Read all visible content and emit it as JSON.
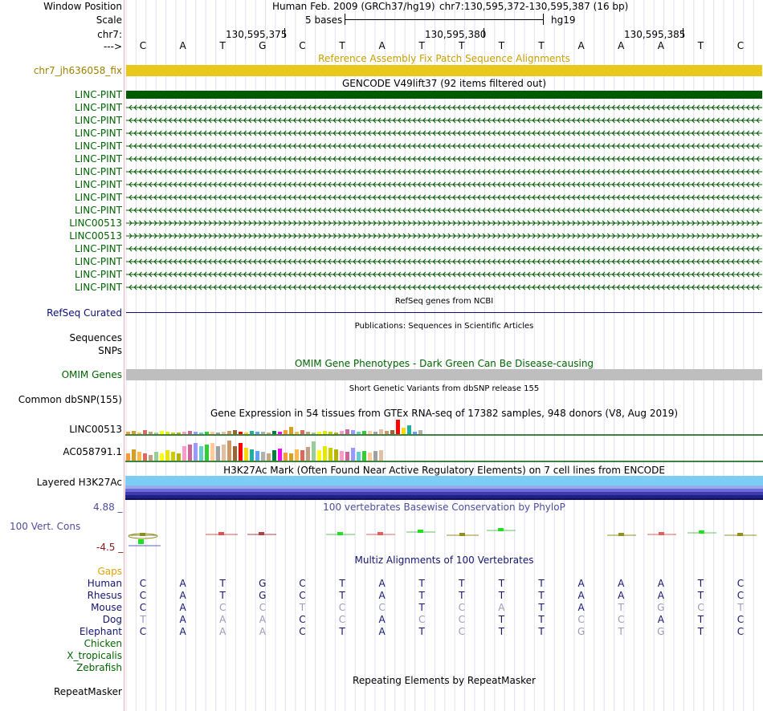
{
  "header": {
    "window_position_label": "Window Position",
    "scale_label": "Scale",
    "chrom_label": "chr7:",
    "strand_label": "--->",
    "assembly_text": "Human Feb. 2009 (GRCh37/hg19)",
    "position_text": "chr7:130,595,372-130,595,387 (16 bp)",
    "scale_text": "5 bases",
    "db_text": "hg19",
    "ticks": [
      "130,595,375",
      "130,595,380",
      "130,595,385"
    ]
  },
  "sequence": [
    "C",
    "A",
    "T",
    "G",
    "C",
    "T",
    "A",
    "T",
    "T",
    "T",
    "T",
    "A",
    "A",
    "A",
    "T",
    "C"
  ],
  "tracks": {
    "fix_patch": {
      "title": "Reference Assembly Fix Patch Sequence Alignments",
      "label": "chr7_jh636058_fix",
      "color": "#e8c81a"
    },
    "gencode": {
      "title": "GENCODE V49lift37 (92 items filtered out)",
      "genes": [
        {
          "name": "LINC-PINT",
          "dir": "<"
        },
        {
          "name": "LINC-PINT",
          "dir": "<"
        },
        {
          "name": "LINC-PINT",
          "dir": "<"
        },
        {
          "name": "LINC-PINT",
          "dir": "<"
        },
        {
          "name": "LINC-PINT",
          "dir": "<"
        },
        {
          "name": "LINC-PINT",
          "dir": "<"
        },
        {
          "name": "LINC-PINT",
          "dir": "<"
        },
        {
          "name": "LINC-PINT",
          "dir": "<"
        },
        {
          "name": "LINC-PINT",
          "dir": "<"
        },
        {
          "name": "LINC-PINT",
          "dir": "<"
        },
        {
          "name": "LINC00513",
          "dir": ">"
        },
        {
          "name": "LINC00513",
          "dir": ">"
        },
        {
          "name": "LINC-PINT",
          "dir": "<"
        },
        {
          "name": "LINC-PINT",
          "dir": "<"
        },
        {
          "name": "LINC-PINT",
          "dir": "<"
        },
        {
          "name": "LINC-PINT",
          "dir": "<"
        }
      ]
    },
    "refseq": {
      "title": "RefSeq genes from NCBI",
      "label": "RefSeq Curated"
    },
    "publications": {
      "title": "Publications: Sequences in Scientific Articles",
      "label1": "Sequences",
      "label2": "SNPs"
    },
    "omim": {
      "title": "OMIM Gene Phenotypes - Dark Green Can Be Disease-causing",
      "label": "OMIM Genes"
    },
    "dbsnp": {
      "title": "Short Genetic Variants from dbSNP release 155",
      "label": "Common dbSNP(155)"
    },
    "gtex": {
      "title": "Gene Expression in 54 tissues from GTEx RNA-seq of 17382 samples, 948 donors (V8, Aug 2019)",
      "genes": [
        "LINC00513",
        "AC058791.1"
      ]
    },
    "h3k27ac": {
      "title": "H3K27Ac Mark (Often Found Near Active Regulatory Elements) on 7 cell lines from ENCODE",
      "label": "Layered H3K27Ac"
    },
    "conservation": {
      "title": "100 vertebrates Basewise Conservation by PhyloP",
      "label": "100 Vert. Cons",
      "max": "4.88 _",
      "min": "-4.5 _"
    },
    "multiz": {
      "title": "Multiz Alignments of 100 Vertebrates",
      "gaps_label": "Gaps",
      "species": [
        {
          "name": "Human",
          "seq": [
            "C",
            "A",
            "T",
            "G",
            "C",
            "T",
            "A",
            "T",
            "T",
            "T",
            "T",
            "A",
            "A",
            "A",
            "T",
            "C"
          ],
          "dim": []
        },
        {
          "name": "Rhesus",
          "seq": [
            "C",
            "A",
            "T",
            "G",
            "C",
            "T",
            "A",
            "T",
            "T",
            "T",
            "T",
            "A",
            "A",
            "A",
            "T",
            "C"
          ],
          "dim": []
        },
        {
          "name": "Mouse",
          "seq": [
            "C",
            "A",
            "C",
            "C",
            "T",
            "C",
            "C",
            "T",
            "C",
            "A",
            "T",
            "A",
            "T",
            "G",
            "C",
            "T"
          ],
          "dim": [
            2,
            3,
            4,
            5,
            6,
            8,
            9,
            12,
            13,
            14,
            15
          ]
        },
        {
          "name": "Dog",
          "seq": [
            "T",
            "A",
            "A",
            "A",
            "C",
            "C",
            "A",
            "C",
            "C",
            "T",
            "T",
            "C",
            "C",
            "A",
            "T",
            "C"
          ],
          "dim": [
            0,
            2,
            3,
            5,
            7,
            8,
            11,
            12
          ]
        },
        {
          "name": "Elephant",
          "seq": [
            "C",
            "A",
            "A",
            "A",
            "C",
            "T",
            "A",
            "T",
            "C",
            "T",
            "T",
            "G",
            "T",
            "G",
            "T",
            "C"
          ],
          "dim": [
            2,
            3,
            8,
            11,
            12,
            13
          ]
        },
        {
          "name": "Chicken",
          "seq": [],
          "dim": []
        },
        {
          "name": "X_tropicalis",
          "seq": [],
          "dim": []
        },
        {
          "name": "Zebrafish",
          "seq": [],
          "dim": []
        }
      ]
    },
    "repeatmasker": {
      "title": "Repeating Elements by RepeatMasker",
      "label": "RepeatMasker"
    }
  },
  "colors": {
    "gene_green": "#005a00",
    "gene_label": "#006400",
    "refseq_blue": "#0c0c78",
    "omim_gray": "#bebebe",
    "cons_label": "#4d4d9c",
    "multiz_navy": "#14146e",
    "gaps_orange": "#e0a000"
  }
}
